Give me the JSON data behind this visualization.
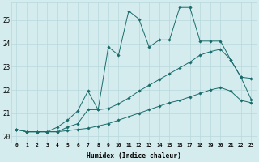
{
  "xlabel": "Humidex (Indice chaleur)",
  "xlim": [
    -0.5,
    23.5
  ],
  "ylim": [
    19.75,
    25.75
  ],
  "bg_color": "#d4ecee",
  "grid_color": "#b8d8dc",
  "line_color": "#1a6b6b",
  "xtick_labels": [
    "0",
    "1",
    "2",
    "3",
    "4",
    "5",
    "6",
    "7",
    "8",
    "9",
    "10",
    "11",
    "12",
    "13",
    "14",
    "15",
    "16",
    "17",
    "18",
    "19",
    "20",
    "21",
    "22",
    "23"
  ],
  "ytick_vals": [
    20,
    21,
    22,
    23,
    24,
    25
  ],
  "line1_x": [
    0,
    1,
    2,
    3,
    4,
    5,
    6,
    7,
    8,
    9,
    10,
    11,
    12,
    13,
    14,
    15,
    16,
    17,
    18,
    19,
    20,
    21,
    22,
    23
  ],
  "line1_y": [
    20.3,
    20.2,
    20.2,
    20.2,
    20.2,
    20.25,
    20.3,
    20.35,
    20.45,
    20.55,
    20.7,
    20.85,
    21.0,
    21.15,
    21.3,
    21.45,
    21.55,
    21.7,
    21.85,
    22.0,
    22.1,
    21.95,
    21.55,
    21.45
  ],
  "line2_x": [
    0,
    1,
    2,
    3,
    4,
    5,
    6,
    7,
    8,
    9,
    10,
    11,
    12,
    13,
    14,
    15,
    16,
    17,
    18,
    19,
    20,
    21,
    22,
    23
  ],
  "line2_y": [
    20.3,
    20.2,
    20.2,
    20.2,
    20.2,
    20.4,
    20.55,
    21.15,
    21.15,
    21.2,
    21.4,
    21.65,
    21.95,
    22.2,
    22.45,
    22.7,
    22.95,
    23.2,
    23.5,
    23.65,
    23.75,
    23.3,
    22.55,
    21.6
  ],
  "line3_x": [
    0,
    1,
    2,
    3,
    4,
    5,
    6,
    7,
    8,
    9,
    10,
    11,
    12,
    13,
    14,
    15,
    16,
    17,
    18,
    19,
    20,
    21,
    22,
    23
  ],
  "line3_y": [
    20.3,
    20.2,
    20.2,
    20.2,
    20.4,
    20.7,
    21.1,
    21.95,
    21.15,
    23.85,
    23.5,
    25.4,
    25.05,
    23.85,
    24.15,
    24.15,
    25.55,
    25.55,
    24.1,
    24.1,
    24.1,
    23.3,
    22.55,
    22.5
  ]
}
